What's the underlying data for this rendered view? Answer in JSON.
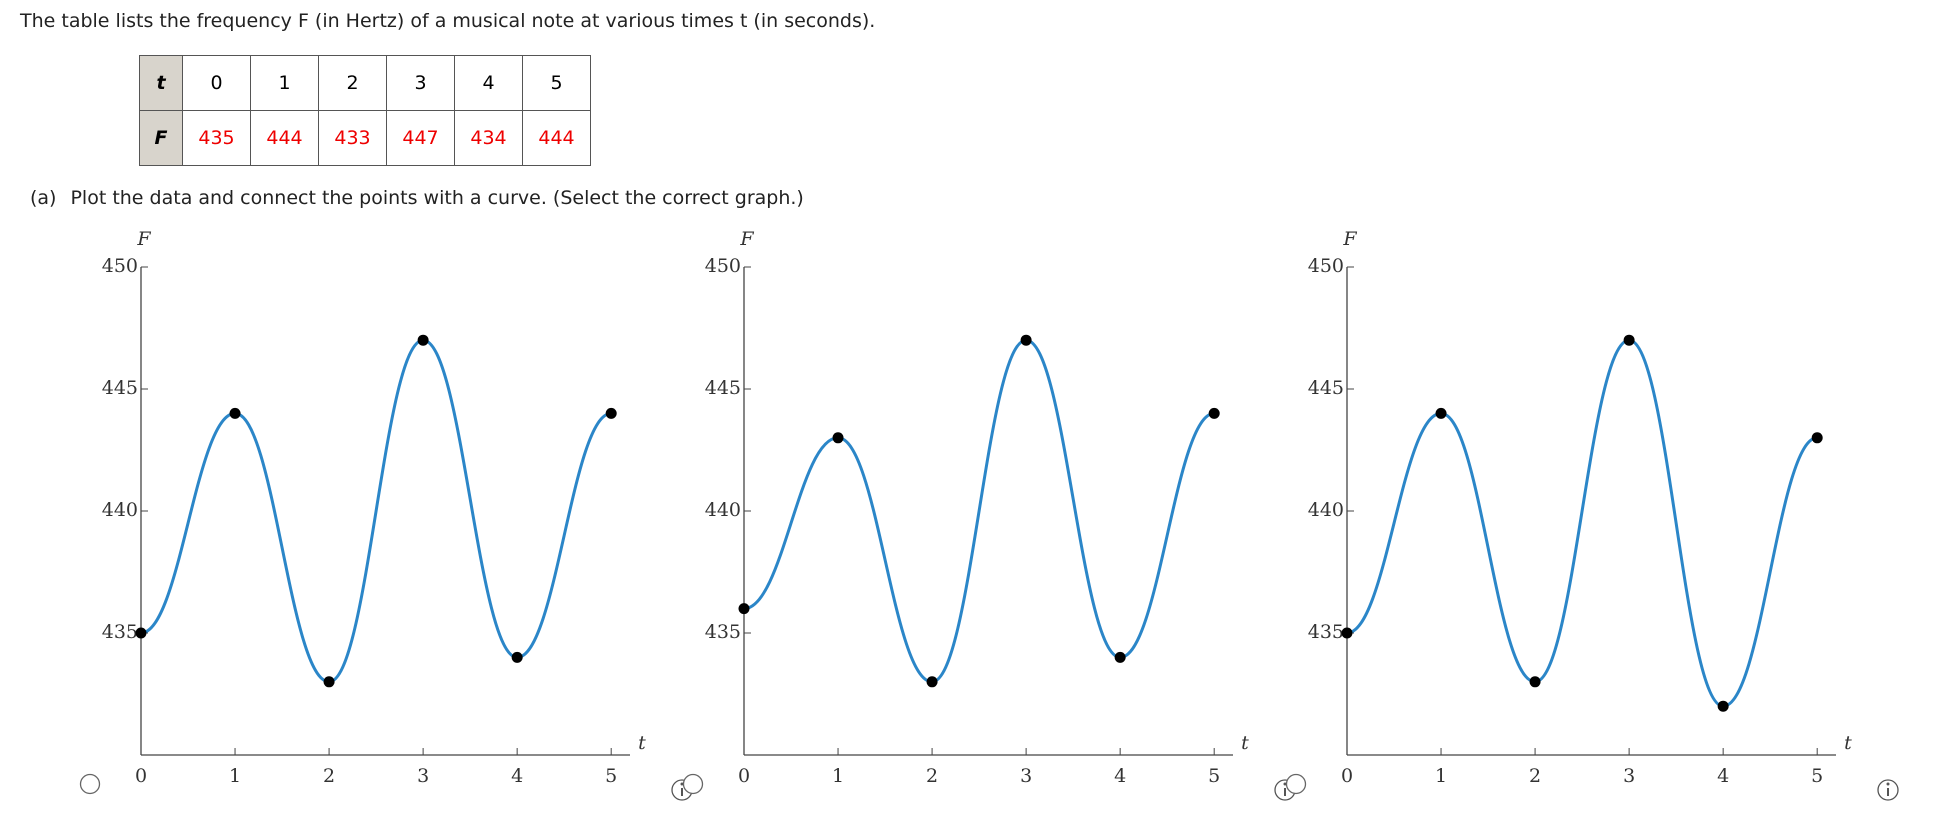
{
  "question": "The table lists the frequency F (in Hertz) of a musical note at various times t (in seconds).",
  "table": {
    "rows": [
      [
        "t",
        0,
        1,
        2,
        3,
        4,
        5
      ],
      [
        "F",
        435,
        444,
        433,
        447,
        434,
        444
      ]
    ]
  },
  "part_a": {
    "label": "(a)",
    "prompt": "Plot the data and connect the points with a curve. (Select the correct graph.)"
  },
  "chart_data": [
    {
      "type": "line",
      "x_label": "t",
      "y_label": "F",
      "x": [
        0,
        1,
        2,
        3,
        4,
        5
      ],
      "values": [
        435,
        444,
        433,
        447,
        434,
        444
      ],
      "color": "#2b86c8",
      "xlim": [
        0,
        5.2
      ],
      "ylim": [
        430,
        450
      ],
      "xticks": [
        0,
        1,
        2,
        3,
        4,
        5
      ],
      "yticks": [
        435,
        440,
        445,
        450
      ]
    },
    {
      "type": "line",
      "x_label": "t",
      "y_label": "F",
      "x": [
        0,
        1,
        2,
        3,
        4,
        5
      ],
      "values": [
        436,
        443,
        433,
        447,
        434,
        444
      ],
      "color": "#2b86c8",
      "xlim": [
        0,
        5.2
      ],
      "ylim": [
        430,
        450
      ],
      "xticks": [
        0,
        1,
        2,
        3,
        4,
        5
      ],
      "yticks": [
        435,
        440,
        445,
        450
      ]
    },
    {
      "type": "line",
      "x_label": "t",
      "y_label": "F",
      "x": [
        0,
        1,
        2,
        3,
        4,
        5
      ],
      "values": [
        435,
        444,
        433,
        447,
        432,
        443
      ],
      "color": "#2b86c8",
      "xlim": [
        0,
        5.2
      ],
      "ylim": [
        430,
        450
      ],
      "xticks": [
        0,
        1,
        2,
        3,
        4,
        5
      ],
      "yticks": [
        435,
        440,
        445,
        450
      ]
    }
  ]
}
